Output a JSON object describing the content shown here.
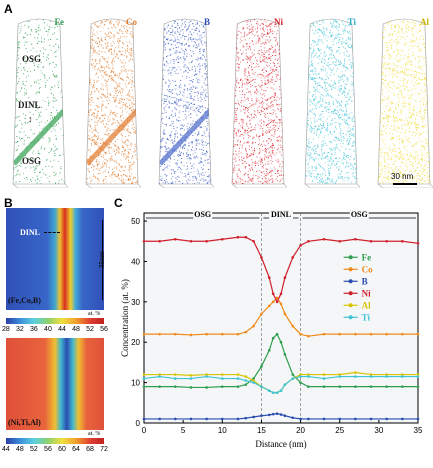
{
  "panel_a": {
    "letter": "A",
    "tips": [
      {
        "element": "Fe",
        "color": "#2e9e4e",
        "text_color": "#2e9e4e"
      },
      {
        "element": "Co",
        "color": "#e07a2a",
        "text_color": "#e07a2a"
      },
      {
        "element": "B",
        "color": "#4a68c9",
        "text_color": "#2a4cb0"
      },
      {
        "element": "Ni",
        "color": "#e0363f",
        "text_color": "#d0202c"
      },
      {
        "element": "Ti",
        "color": "#3fc4d6",
        "text_color": "#22a9c2"
      },
      {
        "element": "Al",
        "color": "#f0dc3c",
        "text_color": "#c8b000"
      }
    ],
    "osg_top": "OSG",
    "dinl": "DINL",
    "osg_bottom": "OSG",
    "scalebar": "30 nm"
  },
  "panel_b": {
    "letter": "B",
    "map1": {
      "dinl": "DINL",
      "scale": "35nm",
      "label": "(Fe,Co,B)",
      "unit": "at. %",
      "ticks": [
        "28",
        "32",
        "36",
        "40",
        "44",
        "48",
        "52",
        "56"
      ]
    },
    "map2": {
      "label": "(Ni,Ti,Al)",
      "unit": "at. %",
      "ticks": [
        "44",
        "48",
        "52",
        "56",
        "60",
        "64",
        "68",
        "72"
      ]
    }
  },
  "panel_c": {
    "letter": "C",
    "regions": [
      "OSG",
      "DINL",
      "OSG"
    ]
  },
  "chart_data": {
    "type": "line",
    "xlabel": "Distance (nm)",
    "ylabel": "Concentration (at. %)",
    "xlim": [
      0,
      35
    ],
    "ylim": [
      0,
      52
    ],
    "xticks": [
      0,
      5,
      10,
      15,
      20,
      25,
      30,
      35
    ],
    "yticks": [
      0,
      10,
      20,
      30,
      40,
      50
    ],
    "legend_position": "right",
    "x": [
      0,
      2,
      4,
      6,
      8,
      10,
      12,
      13,
      14,
      15,
      16,
      16.5,
      17,
      17.5,
      18,
      19,
      20,
      21,
      23,
      25,
      27,
      29,
      31,
      33,
      35
    ],
    "series": [
      {
        "name": "Fe",
        "color": "#2e9e4e",
        "values": [
          9,
          9,
          9,
          8.8,
          8.8,
          9,
          9,
          9.5,
          11,
          14,
          18,
          21,
          22,
          20,
          17,
          12,
          10,
          9,
          9,
          9,
          9,
          9,
          9,
          9,
          9
        ]
      },
      {
        "name": "Co",
        "color": "#f08a1a",
        "values": [
          22,
          22,
          22,
          21.8,
          22,
          22,
          22,
          22.5,
          24,
          27,
          29,
          30,
          31,
          29.5,
          27,
          24,
          22,
          21.5,
          22,
          22,
          22,
          22,
          22,
          22,
          22
        ]
      },
      {
        "name": "B",
        "color": "#2a4cb0",
        "values": [
          1,
          1,
          1,
          1,
          1,
          1,
          1,
          1.2,
          1.5,
          1.8,
          2,
          2.2,
          2.3,
          2.1,
          1.8,
          1.3,
          1,
          1,
          1,
          1,
          1,
          1,
          1,
          1,
          1
        ]
      },
      {
        "name": "Ni",
        "color": "#d0202c",
        "values": [
          45,
          45,
          45.5,
          45,
          45,
          45.5,
          46,
          46,
          45,
          41,
          36,
          32,
          30,
          32,
          36,
          41,
          44,
          45,
          45.5,
          45,
          45.5,
          45,
          45,
          45,
          44.5
        ]
      },
      {
        "name": "Al",
        "color": "#d8c400",
        "values": [
          12,
          12,
          12,
          11.8,
          12,
          12,
          12,
          11.5,
          10.5,
          9,
          8,
          7.5,
          7.5,
          8,
          9.5,
          11,
          12,
          12,
          12,
          12,
          12.5,
          12,
          12,
          12,
          12
        ]
      },
      {
        "name": "Ti",
        "color": "#3fc4d6",
        "values": [
          11,
          11.5,
          11,
          11,
          11.5,
          11,
          11,
          10.5,
          10,
          9,
          8,
          7.5,
          7.5,
          8,
          9.5,
          11,
          11.5,
          11.5,
          11,
          11.5,
          11.5,
          11.5,
          11.5,
          11.5,
          11.5
        ]
      }
    ]
  }
}
